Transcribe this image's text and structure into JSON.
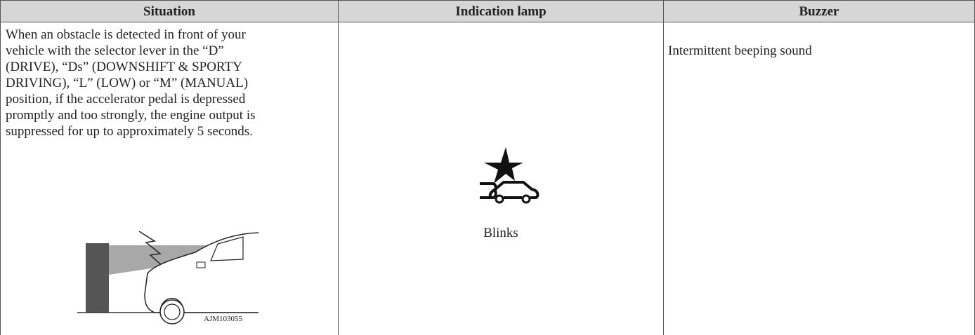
{
  "table": {
    "header": [
      "Situation",
      "Indication lamp",
      "Buzzer"
    ],
    "rows": [
      {
        "situation": {
          "lines": [
            "When an obstacle is detected in front of your",
            "vehicle with the selector lever in the “D”",
            "(DRIVE), “Ds” (DOWNSHIFT & SPORTY",
            "DRIVING), “L” (LOW) or “M” (MANUAL)",
            "position, if the accelerator pedal is depressed",
            "promptly and too strongly, the engine output is",
            "suppressed for up to approximately 5 seconds."
          ],
          "figure_code": "AJM103055"
        },
        "indication_lamp": "Blinks",
        "buzzer": "Intermittent beeping sound"
      }
    ]
  }
}
